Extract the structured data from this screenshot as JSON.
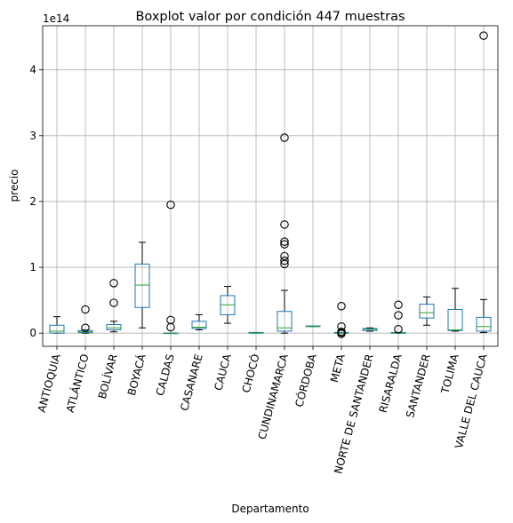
{
  "chart_data": {
    "type": "boxplot",
    "title": "Boxplot valor por condición 447 muestras",
    "xlabel": "Departamento",
    "ylabel": "precio",
    "y_scale_label": "1e14",
    "y_multiplier": 100000000000000.0,
    "ylim": [
      -0.2,
      4.67
    ],
    "yticks": [
      0,
      1,
      2,
      3,
      4
    ],
    "grid": true,
    "colors": {
      "box": "#1f77b4",
      "median": "#2ca02c",
      "whisker": "#000000",
      "flier": "#000000",
      "grid": "#b0b0b0"
    },
    "categories": [
      "ANTIOQUIA",
      "ATLÁNTICO",
      "BOLÍVAR",
      "BOYACÁ",
      "CALDAS",
      "CASANARE",
      "CAUCA",
      "CHOCÓ",
      "CUNDINAMARCA",
      "CÓRDOBA",
      "META",
      "NORTE DE SANTANDER",
      "RISARALDA",
      "SANTANDER",
      "TOLIMA",
      "VALLE DEL CAUCA"
    ],
    "boxes": [
      {
        "whislo": 0.0,
        "q1": 0.0,
        "med": 0.03,
        "q3": 0.12,
        "whishi": 0.25,
        "fliers": []
      },
      {
        "whislo": 0.0,
        "q1": 0.01,
        "med": 0.02,
        "q3": 0.04,
        "whishi": 0.05,
        "fliers": [
          0.08,
          0.36
        ]
      },
      {
        "whislo": 0.02,
        "q1": 0.05,
        "med": 0.08,
        "q3": 0.13,
        "whishi": 0.18,
        "fliers": [
          0.46,
          0.76
        ]
      },
      {
        "whislo": 0.08,
        "q1": 0.39,
        "med": 0.73,
        "q3": 1.05,
        "whishi": 1.38,
        "fliers": []
      },
      {
        "whislo": 0.0,
        "q1": 0.0,
        "med": 0.0,
        "q3": 0.0,
        "whishi": 0.0,
        "fliers": [
          0.09,
          0.2,
          1.95
        ]
      },
      {
        "whislo": 0.05,
        "q1": 0.07,
        "med": 0.09,
        "q3": 0.18,
        "whishi": 0.28,
        "fliers": []
      },
      {
        "whislo": 0.15,
        "q1": 0.28,
        "med": 0.43,
        "q3": 0.57,
        "whishi": 0.71,
        "fliers": []
      },
      {
        "whislo": 0.0,
        "q1": 0.0,
        "med": 0.0,
        "q3": 0.01,
        "whishi": 0.01,
        "fliers": []
      },
      {
        "whislo": 0.0,
        "q1": 0.03,
        "med": 0.08,
        "q3": 0.33,
        "whishi": 0.65,
        "fliers": [
          1.05,
          1.1,
          1.17,
          1.35,
          1.39,
          1.65,
          2.97
        ]
      },
      {
        "whislo": 0.1,
        "q1": 0.1,
        "med": 0.1,
        "q3": 0.11,
        "whishi": 0.11,
        "fliers": []
      },
      {
        "whislo": 0.0,
        "q1": 0.0,
        "med": 0.0,
        "q3": 0.01,
        "whishi": 0.01,
        "fliers": [
          -0.01,
          0.01,
          0.02,
          0.1,
          0.41
        ]
      },
      {
        "whislo": 0.03,
        "q1": 0.04,
        "med": 0.06,
        "q3": 0.07,
        "whishi": 0.08,
        "fliers": []
      },
      {
        "whislo": 0.0,
        "q1": 0.0,
        "med": 0.0,
        "q3": 0.01,
        "whishi": 0.01,
        "fliers": [
          0.06,
          0.27,
          0.43
        ]
      },
      {
        "whislo": 0.12,
        "q1": 0.23,
        "med": 0.31,
        "q3": 0.44,
        "whishi": 0.55,
        "fliers": []
      },
      {
        "whislo": 0.03,
        "q1": 0.04,
        "med": 0.05,
        "q3": 0.36,
        "whishi": 0.68,
        "fliers": []
      },
      {
        "whislo": 0.01,
        "q1": 0.03,
        "med": 0.1,
        "q3": 0.24,
        "whishi": 0.51,
        "fliers": [
          4.52
        ]
      }
    ]
  }
}
